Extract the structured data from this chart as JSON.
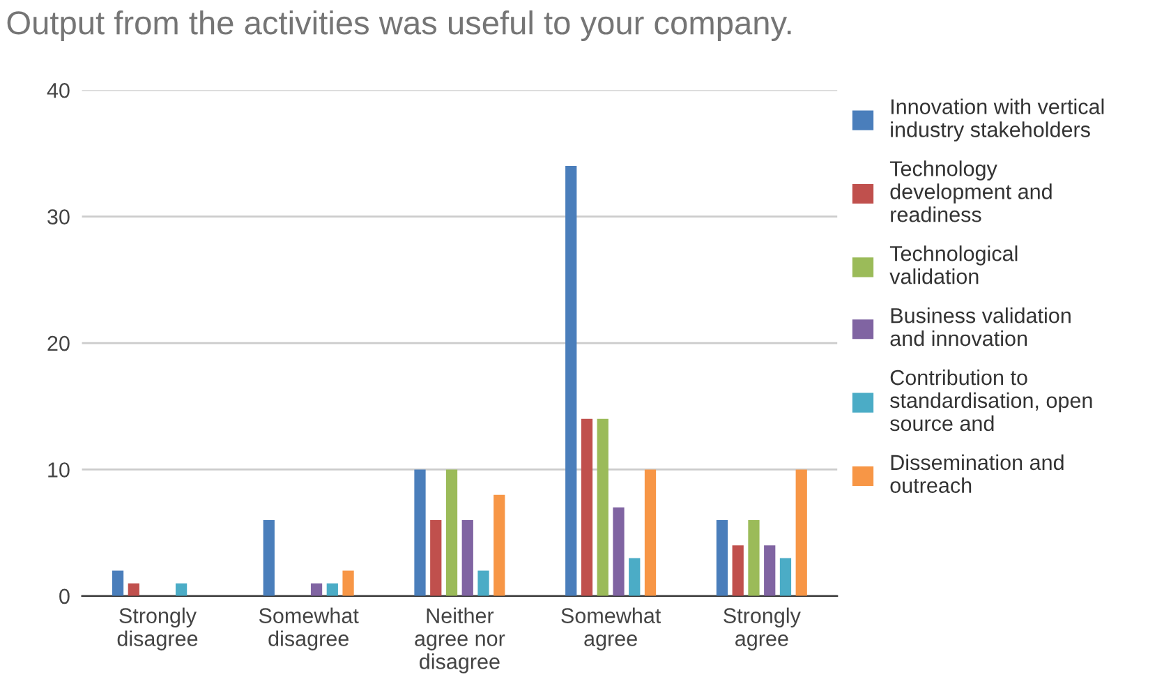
{
  "chart_data": {
    "type": "bar",
    "title": "Output from the activities was useful to your company.",
    "categories": [
      "Strongly\ndisagree",
      "Somewhat\ndisagree",
      "Neither\nagree nor\ndisagree",
      "Somewhat\nagree",
      "Strongly\nagree"
    ],
    "series": [
      {
        "name": "Innovation with vertical\nindustry stakeholders",
        "color": "#4a7ebb",
        "values": [
          2,
          6,
          10,
          34,
          6
        ]
      },
      {
        "name": "Technology\ndevelopment and\nreadiness",
        "color": "#c0504d",
        "values": [
          1,
          0,
          6,
          14,
          4
        ]
      },
      {
        "name": "Technological\nvalidation",
        "color": "#9bbb59",
        "values": [
          0,
          0,
          10,
          14,
          6
        ]
      },
      {
        "name": "Business validation\nand innovation",
        "color": "#8064a2",
        "values": [
          0,
          1,
          6,
          7,
          4
        ]
      },
      {
        "name": "Contribution to\nstandardisation, open\nsource and",
        "color": "#4bacc6",
        "values": [
          1,
          1,
          2,
          3,
          3
        ]
      },
      {
        "name": "Dissemination and\noutreach",
        "color": "#f79646",
        "values": [
          0,
          2,
          8,
          10,
          10
        ]
      }
    ],
    "ylim": [
      0,
      40
    ],
    "yticks": [
      0,
      10,
      20,
      30,
      40
    ],
    "grid": "y",
    "legend": "right"
  }
}
